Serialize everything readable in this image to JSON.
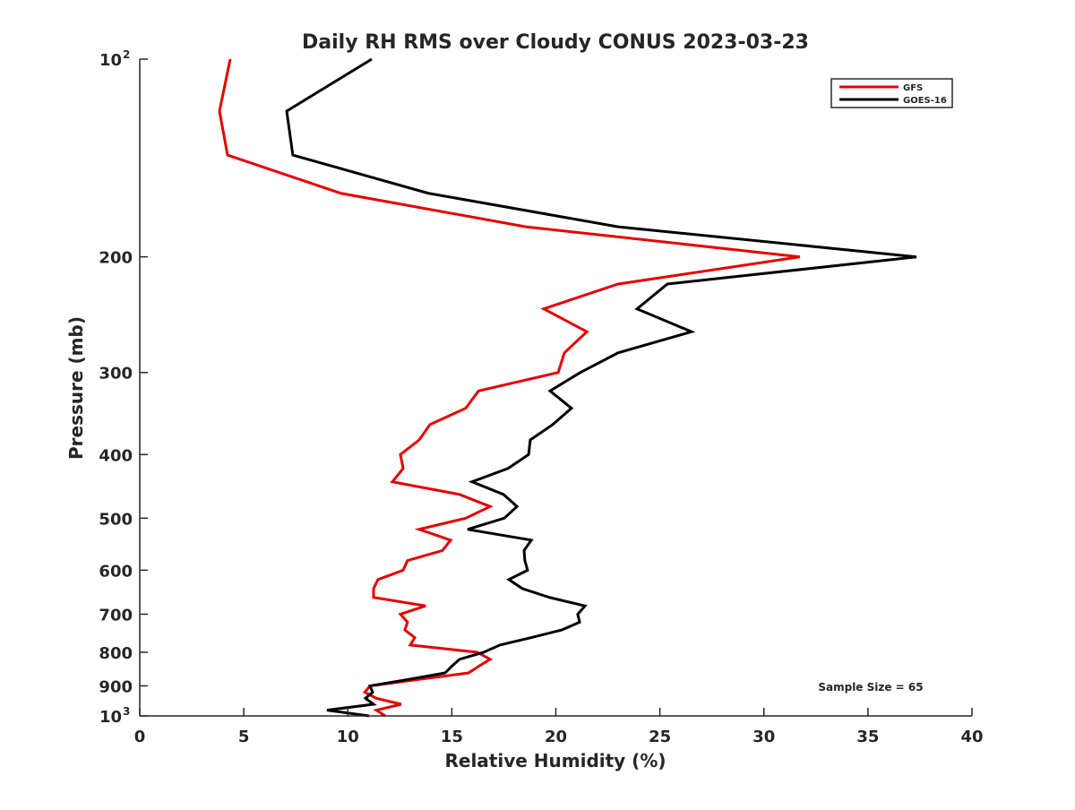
{
  "chart_data": {
    "type": "line",
    "title": "Daily RH RMS over Cloudy CONUS 2023-03-23",
    "xlabel": "Relative Humidity (%)",
    "ylabel": "Pressure (mb)",
    "xlim": [
      0,
      40
    ],
    "ylim": [
      100,
      1000
    ],
    "yscale": "log",
    "y_reversed": true,
    "grid": false,
    "legend_position": "top-right",
    "xticks": [
      0,
      5,
      10,
      15,
      20,
      25,
      30,
      35,
      40
    ],
    "xtick_labels": [
      "0",
      "5",
      "10",
      "15",
      "20",
      "25",
      "30",
      "35",
      "40"
    ],
    "yticks": [
      100,
      200,
      300,
      400,
      500,
      600,
      700,
      800,
      900,
      1000
    ],
    "ytick_labels": [
      "10^2",
      "200",
      "300",
      "400",
      "500",
      "600",
      "700",
      "800",
      "900",
      "10^3"
    ],
    "annotation": "Sample Size = 65",
    "pressure": [
      100,
      120,
      140,
      160,
      180,
      200,
      220,
      240,
      260,
      280,
      300,
      320,
      340,
      360,
      380,
      400,
      420,
      440,
      460,
      480,
      500,
      520,
      540,
      560,
      580,
      600,
      620,
      640,
      660,
      680,
      700,
      720,
      740,
      760,
      780,
      800,
      820,
      840,
      860,
      880,
      900,
      920,
      940,
      960,
      980,
      1000
    ],
    "series": [
      {
        "name": "GFS",
        "color": "#e50000",
        "values": [
          4.35,
          3.83,
          4.22,
          9.64,
          18.56,
          31.73,
          22.99,
          19.42,
          21.49,
          20.41,
          20.11,
          16.28,
          15.67,
          13.95,
          13.43,
          12.53,
          12.66,
          12.14,
          15.37,
          16.84,
          15.67,
          13.43,
          14.94,
          14.55,
          12.87,
          12.66,
          11.45,
          11.24,
          11.24,
          13.74,
          12.53,
          12.87,
          12.74,
          13.22,
          13.0,
          16.23,
          16.84,
          16.3,
          15.8,
          13.4,
          11.07,
          10.81,
          11.37,
          12.57,
          11.37,
          11.8
        ]
      },
      {
        "name": "GOES-16",
        "color": "#000000",
        "values": [
          11.15,
          7.06,
          7.36,
          13.86,
          22.99,
          37.33,
          25.36,
          23.9,
          26.52,
          22.99,
          21.18,
          19.72,
          20.75,
          19.85,
          18.77,
          18.69,
          17.7,
          15.97,
          17.48,
          18.13,
          17.52,
          15.76,
          18.82,
          18.47,
          18.51,
          18.64,
          17.74,
          18.39,
          19.68,
          21.4,
          21.05,
          21.14,
          20.28,
          18.82,
          17.31,
          16.53,
          15.37,
          15.0,
          14.68,
          12.9,
          11.07,
          11.19,
          10.85,
          11.24,
          9.0,
          11.02
        ]
      }
    ]
  }
}
